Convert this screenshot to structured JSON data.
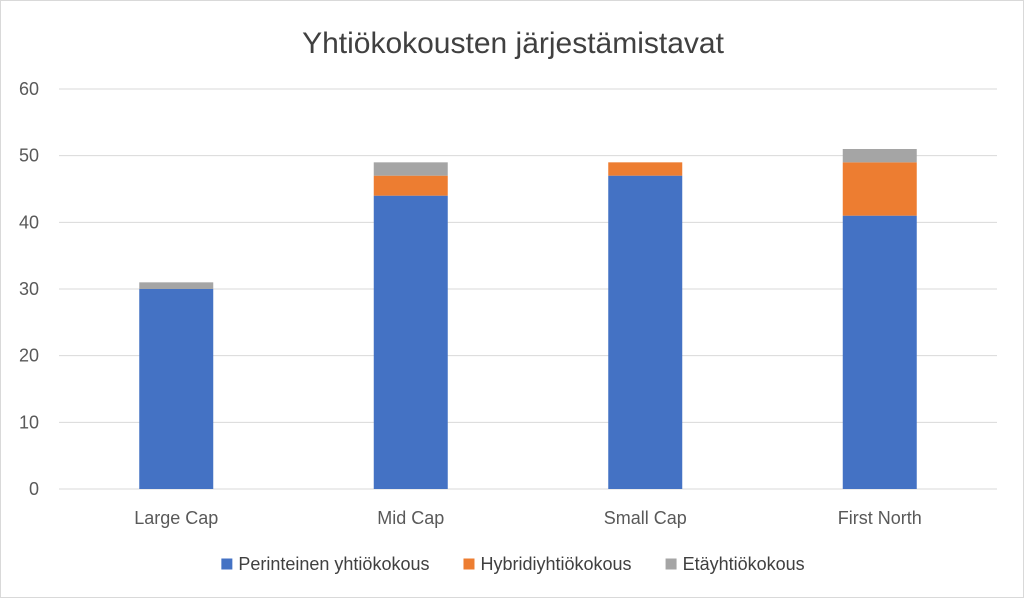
{
  "chart_data": {
    "type": "bar",
    "stacked": true,
    "title": "Yhtiökokousten järjestämistavat",
    "xlabel": "",
    "ylabel": "",
    "categories": [
      "Large Cap",
      "Mid Cap",
      "Small Cap",
      "First North"
    ],
    "ylim": [
      0,
      60
    ],
    "yticks": [
      0,
      10,
      20,
      30,
      40,
      50,
      60
    ],
    "grid": true,
    "legend_position": "bottom",
    "series": [
      {
        "name": "Perinteinen yhtiökokous",
        "color": "#4472C4",
        "values": [
          30,
          44,
          47,
          41
        ]
      },
      {
        "name": "Hybridiyhtiökokous",
        "color": "#ED7D31",
        "values": [
          0,
          3,
          2,
          8
        ]
      },
      {
        "name": "Etäyhtiökokous",
        "color": "#A5A5A5",
        "values": [
          1,
          2,
          0,
          2
        ]
      }
    ]
  }
}
